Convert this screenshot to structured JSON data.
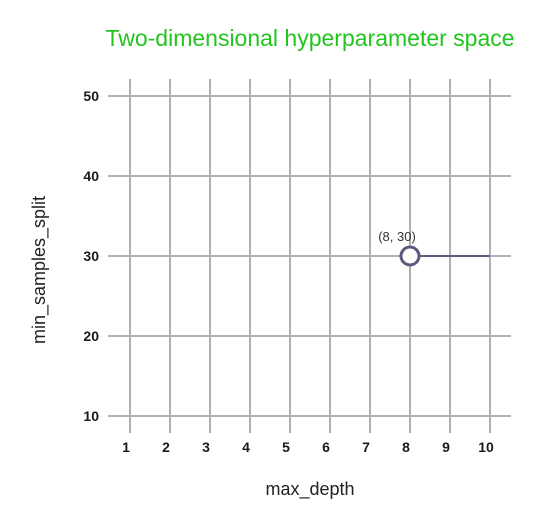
{
  "chart_data": {
    "type": "scatter",
    "title": "Two-dimensional hyperparameter space",
    "xlabel": "max_depth",
    "ylabel": "min_samples_split",
    "xlim": [
      1,
      10
    ],
    "ylim": [
      10,
      50
    ],
    "x_ticks": [
      1,
      2,
      3,
      4,
      5,
      6,
      7,
      8,
      9,
      10
    ],
    "y_ticks": [
      10,
      20,
      30,
      40,
      50
    ],
    "grid": true,
    "points": [
      {
        "x": 8,
        "y": 30,
        "label": "(8, 30)"
      }
    ],
    "segments": [
      {
        "x1": 8,
        "y1": 30,
        "x2": 10,
        "y2": 30
      }
    ],
    "colors": {
      "title": "#22c41e",
      "grid": "#b0b0b0",
      "marker": "#5b5b80",
      "line": "#5b5b80"
    }
  }
}
